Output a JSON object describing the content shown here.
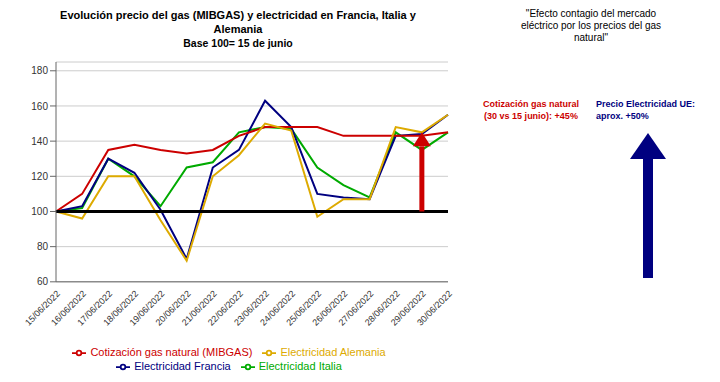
{
  "chart_data": {
    "type": "line",
    "title": "Evolución precio del gas (MIBGAS) y electricidad en Francia, Italia y\nAlemania",
    "subtitle": "Base 100= 15 de junio",
    "categories": [
      "15/06/2022",
      "16/06/2022",
      "17/06/2022",
      "18/06/2022",
      "19/06/2022",
      "20/06/2022",
      "21/06/2022",
      "22/06/2022",
      "23/06/2022",
      "24/06/2022",
      "25/06/2022",
      "26/06/2022",
      "27/06/2022",
      "28/06/2022",
      "29/06/2022",
      "30/06/2022"
    ],
    "series": [
      {
        "name": "Electricidad Italia",
        "color": "#00aa00",
        "values": [
          100,
          102,
          130,
          120,
          103,
          125,
          128,
          145,
          148,
          147,
          125,
          115,
          108,
          145,
          135,
          145
        ]
      },
      {
        "name": "Electricidad Francia",
        "color": "#000080",
        "values": [
          100,
          103,
          130,
          122,
          101,
          73,
          125,
          135,
          163,
          148,
          110,
          108,
          107,
          143,
          144,
          155
        ]
      },
      {
        "name": "Cotización gas natural (MIBGAS)",
        "color": "#cc0000",
        "values": [
          100,
          110,
          135,
          138,
          135,
          133,
          135,
          143,
          148,
          148,
          148,
          143,
          143,
          143,
          143,
          145
        ]
      },
      {
        "name": "Electricidad Alemania",
        "color": "#ddaa00",
        "values": [
          100,
          96,
          120,
          120,
          95,
          72,
          120,
          132,
          150,
          146,
          97,
          107,
          107,
          148,
          145,
          155
        ]
      }
    ],
    "ylim": [
      60,
      185
    ],
    "yticks": [
      60,
      80,
      100,
      120,
      140,
      160,
      180
    ],
    "grid": true,
    "legend": "bottom",
    "reference_line": 100,
    "annotations": [
      {
        "text": "\"Efecto contagio del mercado\neléctrico por los precios del gas\nnatural\""
      },
      {
        "text": "Cotización gas natural\n(30 vs 15 junio): +45%",
        "color": "#cc0000"
      },
      {
        "text": "Precio Electricidad UE:\naprox. +50%",
        "color": "#000080"
      }
    ]
  }
}
